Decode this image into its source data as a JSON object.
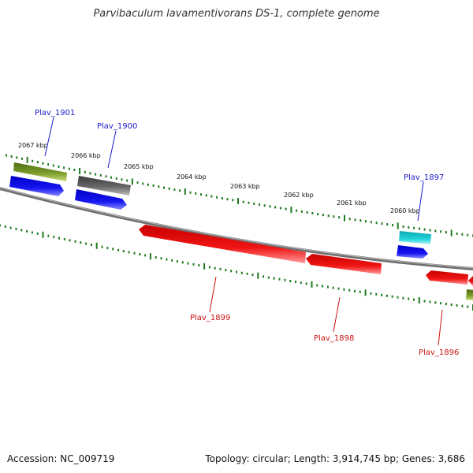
{
  "title": "Parvibaculum lavamentivorans DS-1, complete genome",
  "footer": {
    "accession": "Accession: NC_009719",
    "summary": "Topology: circular; Length: 3,914,745 bp; Genes: 3,686"
  },
  "colors": {
    "backbone": "#7a7a7a",
    "tick": "#1e7a1e",
    "forward_label": "#1a1acc",
    "reverse_label": "#cc1111",
    "olive": "#6b8e23",
    "gray": "#555555",
    "blue": "#1010ee",
    "red": "#ee1111",
    "cyan": "#17c9cf"
  },
  "ticks": [
    {
      "label": "2067 kbp"
    },
    {
      "label": "2066 kbp"
    },
    {
      "label": "2065 kbp"
    },
    {
      "label": "2064 kbp"
    },
    {
      "label": "2063 kbp"
    },
    {
      "label": "2062 kbp"
    },
    {
      "label": "2061 kbp"
    },
    {
      "label": "2060 kbp"
    }
  ],
  "genes": [
    {
      "name": "Plav_1901",
      "strand": "forward"
    },
    {
      "name": "Plav_1900",
      "strand": "forward"
    },
    {
      "name": "Plav_1899",
      "strand": "reverse"
    },
    {
      "name": "Plav_1898",
      "strand": "reverse"
    },
    {
      "name": "Plav_1897",
      "strand": "forward"
    },
    {
      "name": "Plav_1896",
      "strand": "reverse"
    }
  ]
}
